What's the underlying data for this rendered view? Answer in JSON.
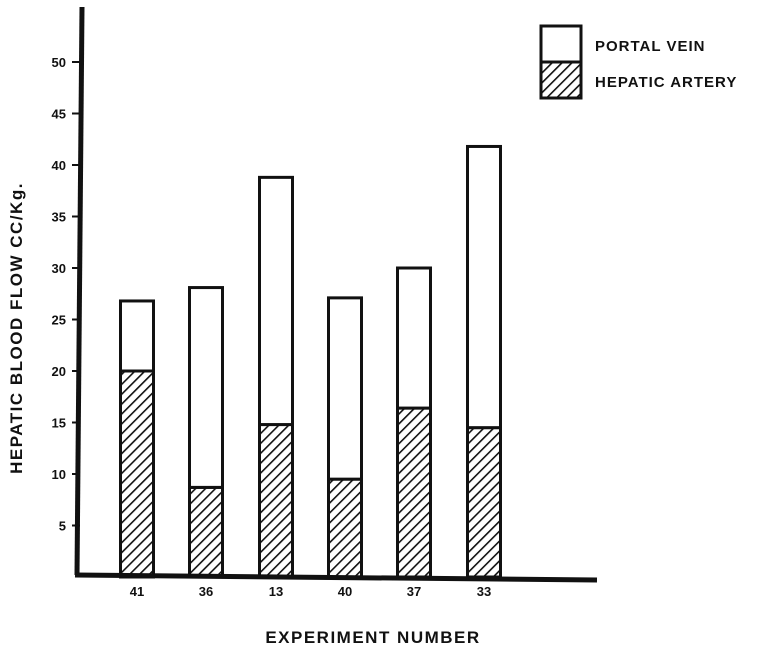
{
  "chart_data": {
    "type": "bar",
    "stacked": true,
    "title": "",
    "xlabel": "EXPERIMENT NUMBER",
    "ylabel": "HEPATIC BLOOD FLOW CC/Kg.",
    "categories": [
      "41",
      "36",
      "13",
      "40",
      "37",
      "33"
    ],
    "series": [
      {
        "name": "HEPATIC ARTERY",
        "pattern": "hatched",
        "color": "#111111",
        "values": [
          20,
          8.7,
          14.8,
          9.5,
          16.4,
          14.5
        ]
      },
      {
        "name": "PORTAL VEIN",
        "pattern": "plain",
        "color": "#ffffff",
        "values": [
          6.8,
          19.4,
          24.0,
          17.6,
          13.6,
          27.3
        ]
      }
    ],
    "ylim": [
      0,
      53
    ],
    "yticks": [
      5,
      10,
      15,
      20,
      25,
      30,
      35,
      40,
      45,
      50
    ],
    "ytick_labels": [
      "5",
      "10",
      "15",
      "20",
      "25",
      "30",
      "35",
      "40",
      "45",
      "50"
    ],
    "legend": {
      "position": "top-right",
      "entries": [
        "PORTAL VEIN",
        "HEPATIC ARTERY"
      ]
    },
    "grid": false
  }
}
